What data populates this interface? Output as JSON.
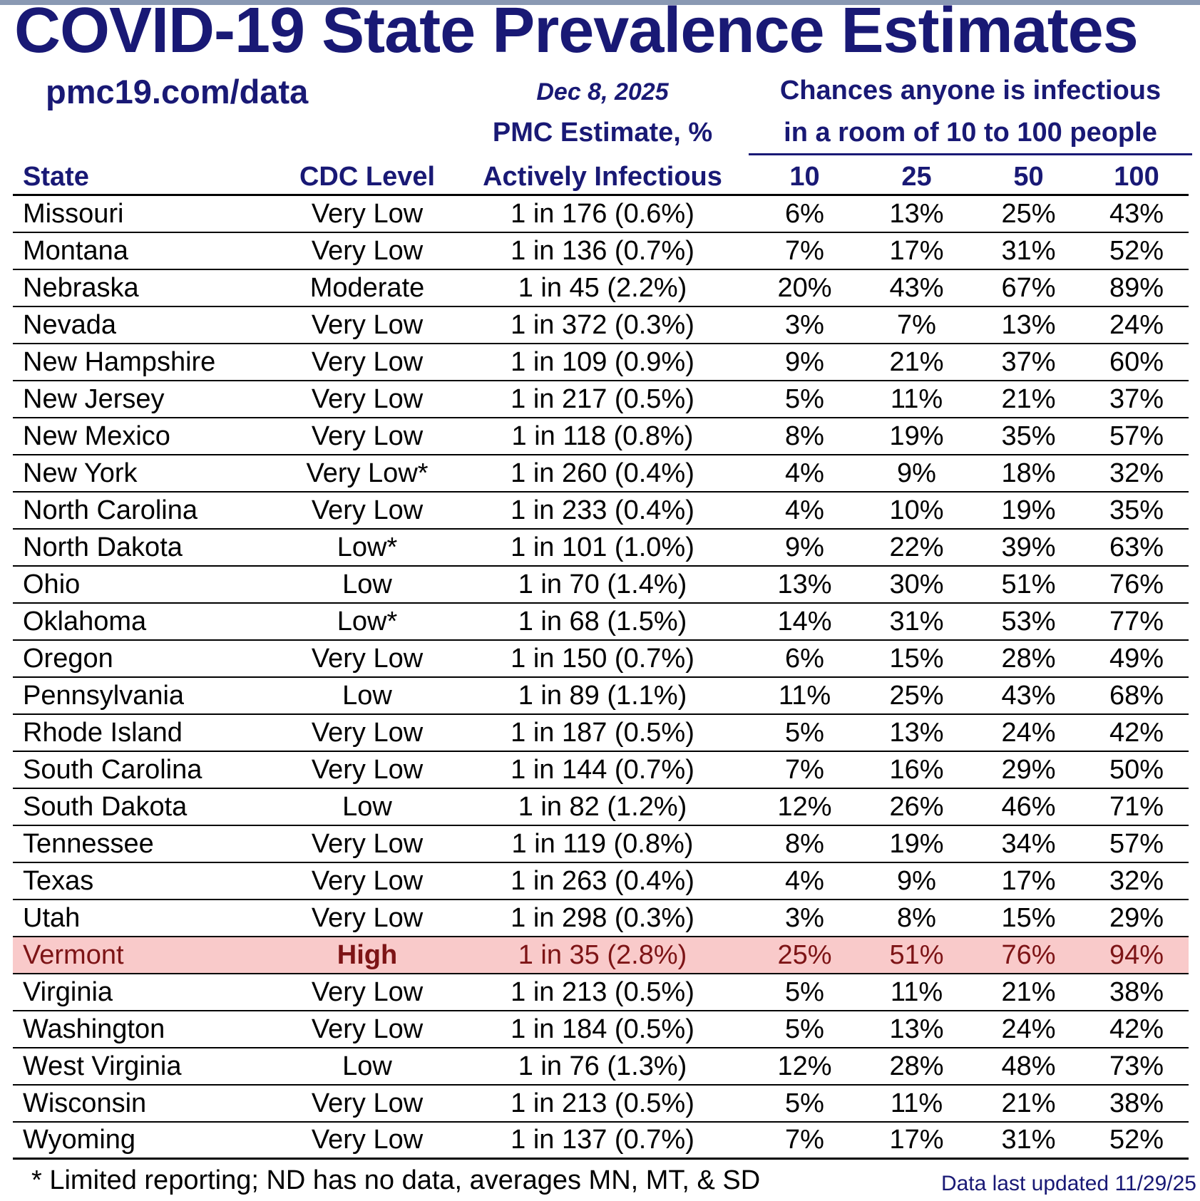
{
  "page": {
    "title": "COVID-19 State Prevalence Estimates",
    "source_link": "pmc19.com/data",
    "date": "Dec 8, 2025",
    "group_header": {
      "line1": "Chances anyone is infectious",
      "line2": "in a room of 10 to 100 people"
    },
    "pmc_header": {
      "line1": "PMC Estimate, %",
      "line2": "Actively Infectious"
    },
    "columns": {
      "state": "State",
      "cdc_level": "CDC Level",
      "room_sizes": [
        "10",
        "25",
        "50",
        "100"
      ]
    },
    "footnote": "* Limited reporting; ND has no data, averages MN, MT, & SD",
    "last_updated": "Data last updated 11/29/25"
  },
  "colors": {
    "navy": "#191975",
    "maroon_highlight_text": "#7d1416",
    "highlight_pink": "#f9caca",
    "topbar_slate": "#8a99b3",
    "row_divider": "#000000"
  },
  "chart_data": {
    "type": "table",
    "title": "COVID-19 State Prevalence Estimates",
    "date": "Dec 8, 2025",
    "columns": [
      "State",
      "CDC Level",
      "PMC Estimate, % Actively Infectious",
      "10",
      "25",
      "50",
      "100"
    ],
    "column_group": "Chances anyone is infectious in a room of 10 to 100 people",
    "highlighted_row": "Vermont",
    "rows": [
      {
        "state": "Missouri",
        "cdc_level": "Very Low",
        "estimate": "1 in 176 (0.6%)",
        "chance_10": "6%",
        "chance_25": "13%",
        "chance_50": "25%",
        "chance_100": "43%"
      },
      {
        "state": "Montana",
        "cdc_level": "Very Low",
        "estimate": "1 in 136 (0.7%)",
        "chance_10": "7%",
        "chance_25": "17%",
        "chance_50": "31%",
        "chance_100": "52%"
      },
      {
        "state": "Nebraska",
        "cdc_level": "Moderate",
        "estimate": "1 in 45 (2.2%)",
        "chance_10": "20%",
        "chance_25": "43%",
        "chance_50": "67%",
        "chance_100": "89%"
      },
      {
        "state": "Nevada",
        "cdc_level": "Very Low",
        "estimate": "1 in 372 (0.3%)",
        "chance_10": "3%",
        "chance_25": "7%",
        "chance_50": "13%",
        "chance_100": "24%"
      },
      {
        "state": "New Hampshire",
        "cdc_level": "Very Low",
        "estimate": "1 in 109 (0.9%)",
        "chance_10": "9%",
        "chance_25": "21%",
        "chance_50": "37%",
        "chance_100": "60%"
      },
      {
        "state": "New Jersey",
        "cdc_level": "Very Low",
        "estimate": "1 in 217 (0.5%)",
        "chance_10": "5%",
        "chance_25": "11%",
        "chance_50": "21%",
        "chance_100": "37%"
      },
      {
        "state": "New Mexico",
        "cdc_level": "Very Low",
        "estimate": "1 in 118 (0.8%)",
        "chance_10": "8%",
        "chance_25": "19%",
        "chance_50": "35%",
        "chance_100": "57%"
      },
      {
        "state": "New York",
        "cdc_level": "Very Low*",
        "estimate": "1 in 260 (0.4%)",
        "chance_10": "4%",
        "chance_25": "9%",
        "chance_50": "18%",
        "chance_100": "32%"
      },
      {
        "state": "North Carolina",
        "cdc_level": "Very Low",
        "estimate": "1 in 233 (0.4%)",
        "chance_10": "4%",
        "chance_25": "10%",
        "chance_50": "19%",
        "chance_100": "35%"
      },
      {
        "state": "North Dakota",
        "cdc_level": "Low*",
        "estimate": "1 in 101 (1.0%)",
        "chance_10": "9%",
        "chance_25": "22%",
        "chance_50": "39%",
        "chance_100": "63%"
      },
      {
        "state": "Ohio",
        "cdc_level": "Low",
        "estimate": "1 in 70 (1.4%)",
        "chance_10": "13%",
        "chance_25": "30%",
        "chance_50": "51%",
        "chance_100": "76%"
      },
      {
        "state": "Oklahoma",
        "cdc_level": "Low*",
        "estimate": "1 in 68 (1.5%)",
        "chance_10": "14%",
        "chance_25": "31%",
        "chance_50": "53%",
        "chance_100": "77%"
      },
      {
        "state": "Oregon",
        "cdc_level": "Very Low",
        "estimate": "1 in 150 (0.7%)",
        "chance_10": "6%",
        "chance_25": "15%",
        "chance_50": "28%",
        "chance_100": "49%"
      },
      {
        "state": "Pennsylvania",
        "cdc_level": "Low",
        "estimate": "1 in 89 (1.1%)",
        "chance_10": "11%",
        "chance_25": "25%",
        "chance_50": "43%",
        "chance_100": "68%"
      },
      {
        "state": "Rhode Island",
        "cdc_level": "Very Low",
        "estimate": "1 in 187 (0.5%)",
        "chance_10": "5%",
        "chance_25": "13%",
        "chance_50": "24%",
        "chance_100": "42%"
      },
      {
        "state": "South Carolina",
        "cdc_level": "Very Low",
        "estimate": "1 in 144 (0.7%)",
        "chance_10": "7%",
        "chance_25": "16%",
        "chance_50": "29%",
        "chance_100": "50%"
      },
      {
        "state": "South Dakota",
        "cdc_level": "Low",
        "estimate": "1 in 82 (1.2%)",
        "chance_10": "12%",
        "chance_25": "26%",
        "chance_50": "46%",
        "chance_100": "71%"
      },
      {
        "state": "Tennessee",
        "cdc_level": "Very Low",
        "estimate": "1 in 119 (0.8%)",
        "chance_10": "8%",
        "chance_25": "19%",
        "chance_50": "34%",
        "chance_100": "57%"
      },
      {
        "state": "Texas",
        "cdc_level": "Very Low",
        "estimate": "1 in 263 (0.4%)",
        "chance_10": "4%",
        "chance_25": "9%",
        "chance_50": "17%",
        "chance_100": "32%"
      },
      {
        "state": "Utah",
        "cdc_level": "Very Low",
        "estimate": "1 in 298 (0.3%)",
        "chance_10": "3%",
        "chance_25": "8%",
        "chance_50": "15%",
        "chance_100": "29%"
      },
      {
        "state": "Vermont",
        "cdc_level": "High",
        "estimate": "1 in 35 (2.8%)",
        "chance_10": "25%",
        "chance_25": "51%",
        "chance_50": "76%",
        "chance_100": "94%",
        "highlight": true
      },
      {
        "state": "Virginia",
        "cdc_level": "Very Low",
        "estimate": "1 in 213 (0.5%)",
        "chance_10": "5%",
        "chance_25": "11%",
        "chance_50": "21%",
        "chance_100": "38%"
      },
      {
        "state": "Washington",
        "cdc_level": "Very Low",
        "estimate": "1 in 184 (0.5%)",
        "chance_10": "5%",
        "chance_25": "13%",
        "chance_50": "24%",
        "chance_100": "42%"
      },
      {
        "state": "West Virginia",
        "cdc_level": "Low",
        "estimate": "1 in 76 (1.3%)",
        "chance_10": "12%",
        "chance_25": "28%",
        "chance_50": "48%",
        "chance_100": "73%"
      },
      {
        "state": "Wisconsin",
        "cdc_level": "Very Low",
        "estimate": "1 in 213 (0.5%)",
        "chance_10": "5%",
        "chance_25": "11%",
        "chance_50": "21%",
        "chance_100": "38%"
      },
      {
        "state": "Wyoming",
        "cdc_level": "Very Low",
        "estimate": "1 in 137 (0.7%)",
        "chance_10": "7%",
        "chance_25": "17%",
        "chance_50": "31%",
        "chance_100": "52%"
      }
    ]
  }
}
